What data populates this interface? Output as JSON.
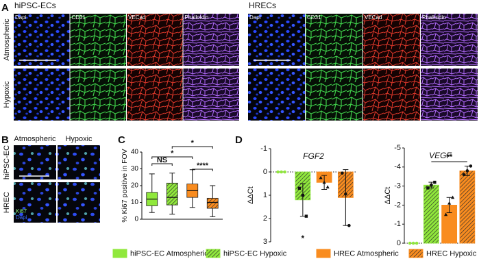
{
  "figure": {
    "panel_letters": [
      "A",
      "B",
      "C",
      "D"
    ],
    "panel_a": {
      "groups": [
        {
          "title": "hiPSC-ECs"
        },
        {
          "title": "HRECs"
        }
      ],
      "channels": [
        "Dapi",
        "CD31",
        "VECad",
        "Phalloidin"
      ],
      "rows": [
        "Atmospheric",
        "Hypoxic"
      ]
    },
    "panel_b": {
      "columns": [
        "Atmospheric",
        "Hypoxic"
      ],
      "rows": [
        "hiPSC-EC",
        "HREC"
      ],
      "stains": [
        {
          "label": "Ki67",
          "color": "#8af07a"
        },
        {
          "label": "Dapi",
          "color": "#3d6cff"
        }
      ]
    }
  },
  "chart_data": [
    {
      "type": "box",
      "y_label": "% Ki67 positive in FOV",
      "ylim": [
        0,
        40
      ],
      "yticks": [
        0,
        10,
        20,
        30,
        40
      ],
      "boxes": [
        {
          "min": 4,
          "q1": 8,
          "median": 12,
          "q3": 16,
          "max": 27
        },
        {
          "min": 3,
          "q1": 8.5,
          "median": 13,
          "q3": 21.5,
          "max": 27.5
        },
        {
          "min": 7,
          "q1": 13,
          "median": 17,
          "q3": 21,
          "max": 29.5
        },
        {
          "min": 1.5,
          "q1": 6.5,
          "median": 10,
          "q3": 12.5,
          "max": 20
        }
      ],
      "annotations": [
        {
          "label": "NS",
          "between": [
            0,
            1
          ]
        },
        {
          "label": "*",
          "between": [
            0,
            2
          ]
        },
        {
          "label": "*",
          "between": [
            1,
            3
          ]
        },
        {
          "label": "****",
          "between": [
            2,
            3
          ]
        }
      ]
    },
    {
      "type": "bar",
      "title": "FGF2",
      "y_label": "ΔΔCt",
      "ylim": [
        3,
        -1
      ],
      "yticks": [
        -1,
        0,
        1,
        2,
        3
      ],
      "values": [
        0,
        1.2,
        0.45,
        1.1
      ],
      "errors": [
        0,
        0.7,
        0.3,
        1.2
      ],
      "points": [
        [
          0,
          0,
          0
        ],
        [
          0.7,
          1.0,
          1.9
        ],
        [
          0.25,
          0.45,
          0.65
        ],
        [
          0.05,
          0.95,
          2.3
        ]
      ],
      "annotations": [
        {
          "label": "*",
          "group": 1
        }
      ]
    },
    {
      "type": "bar",
      "title": "VEGF",
      "y_label": "ΔΔCt",
      "ylim": [
        0,
        -5
      ],
      "yticks": [
        0,
        -1,
        -2,
        -3,
        -4,
        -5
      ],
      "values": [
        0,
        -3.05,
        -2.0,
        -3.8
      ],
      "errors": [
        0,
        0.15,
        0.4,
        0.25
      ],
      "points": [
        [
          0,
          0,
          0
        ],
        [
          -2.9,
          -3.05,
          -3.2
        ],
        [
          -1.5,
          -2.1,
          -2.4
        ],
        [
          -3.6,
          -3.8,
          -4.05
        ]
      ],
      "annotations": [
        {
          "label": "**",
          "between": [
            1,
            3
          ]
        }
      ]
    }
  ],
  "legend": [
    {
      "name": "hiPSC-EC Atmospheric",
      "color": "#90e83c",
      "hatch": false
    },
    {
      "name": "hiPSC-EC Hypoxic",
      "color": "#90e83c",
      "hatch": true
    },
    {
      "name": "HREC Atmospheric",
      "color": "#f98c1f",
      "hatch": false
    },
    {
      "name": "HREC Hypoxic",
      "color": "#f98c1f",
      "hatch": true
    }
  ]
}
